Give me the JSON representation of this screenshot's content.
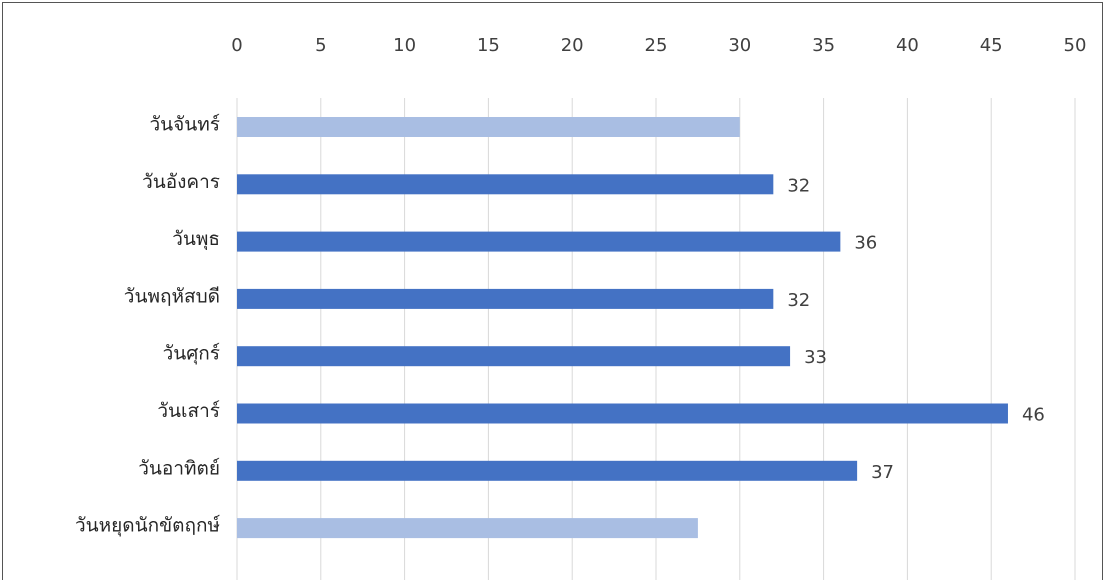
{
  "chart_data": {
    "type": "barh",
    "categories": [
      "วันจันทร์",
      "วันอังคาร",
      "วันพุธ",
      "วันพฤหัสบดี",
      "วันศุกร์",
      "วันเสาร์",
      "วันอาทิตย์",
      "วันหยุดนักขัตฤกษ์"
    ],
    "values": [
      30,
      32,
      36,
      32,
      33,
      46,
      37,
      27.5
    ],
    "colors": [
      "#a9bee3",
      "#4472c4",
      "#4472c4",
      "#4472c4",
      "#4472c4",
      "#4472c4",
      "#4472c4",
      "#a9bee3"
    ],
    "show_value_labels": [
      false,
      true,
      true,
      true,
      true,
      true,
      true,
      false
    ],
    "xlim": [
      0,
      50
    ],
    "xticks": [
      0,
      5,
      10,
      15,
      20,
      25,
      30,
      35,
      40,
      45,
      50
    ],
    "grid": true,
    "xaxis_position": "top"
  }
}
